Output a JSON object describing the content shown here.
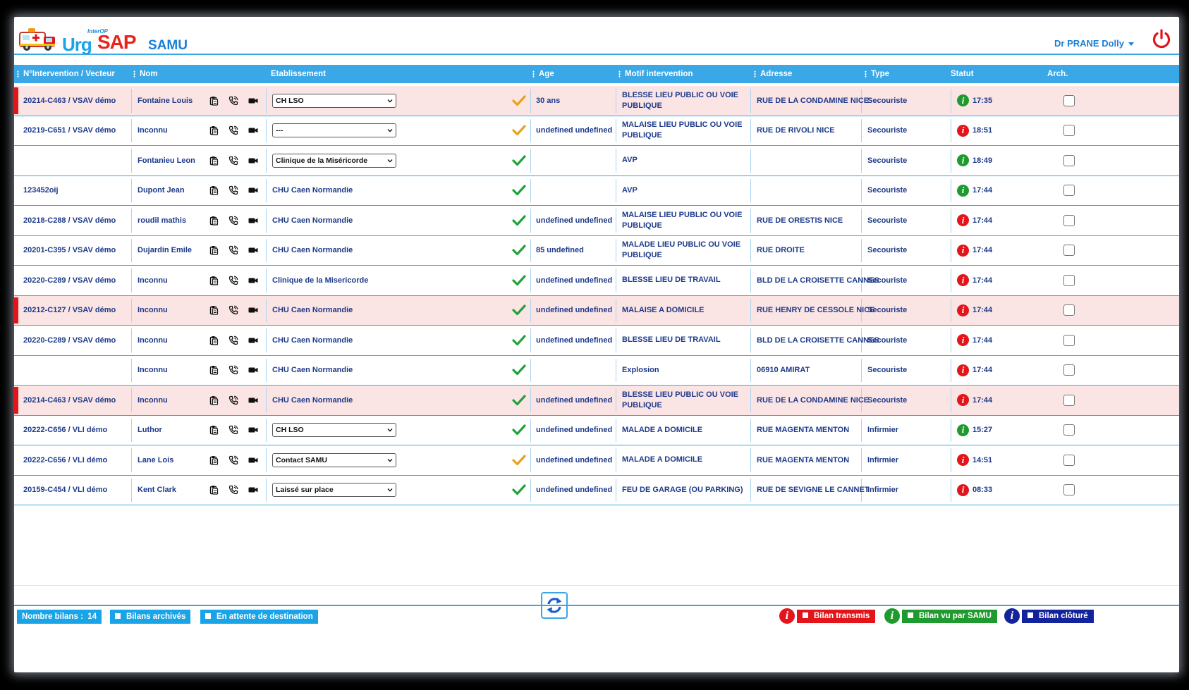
{
  "app": {
    "interop": "InterOP",
    "urg": "Urg",
    "sap": "SAP",
    "samu": "SAMU"
  },
  "user": {
    "name": "Dr PRANE Dolly"
  },
  "columns": [
    "N°Intervention / Vecteur",
    "Nom",
    "Etablissement",
    "Age",
    "Motif intervention",
    "Adresse",
    "Type",
    "Statut",
    "Arch."
  ],
  "colors": {
    "accent": "#3aa7e6",
    "alert_row": "#fbe4e4",
    "alert_bar": "#e3151a",
    "red": "#e3151a",
    "green": "#1f9a2e",
    "navy": "#13239b",
    "check_green": "#1fa33a",
    "check_orange": "#e6a21a"
  },
  "rows": [
    {
      "intervention": "20214-C463 / VSAV démo",
      "nom": "Fontaine Louis",
      "etab": "CH LSO",
      "etab_select": true,
      "check": "orange",
      "age": "30 ans",
      "motif": "BLESSE LIEU PUBLIC OU VOIE PUBLIQUE",
      "adresse": "RUE DE LA CONDAMINE NICE",
      "type": "Secouriste",
      "status": "green",
      "time": "17:35",
      "alert": true
    },
    {
      "intervention": "20219-C651 / VSAV démo",
      "nom": "Inconnu",
      "etab": "---",
      "etab_select": true,
      "check": "orange",
      "age": "undefined undefined",
      "motif": "MALAISE LIEU PUBLIC OU VOIE PUBLIQUE",
      "adresse": "RUE DE RIVOLI NICE",
      "type": "Secouriste",
      "status": "red",
      "time": "18:51",
      "alert": false
    },
    {
      "intervention": "",
      "nom": "Fontanieu Leon",
      "etab": "Clinique de la Miséricorde",
      "etab_select": true,
      "check": "green",
      "age": "",
      "motif": "AVP",
      "adresse": "",
      "type": "Secouriste",
      "status": "green",
      "time": "18:49",
      "alert": false
    },
    {
      "intervention": "123452oij",
      "nom": "Dupont Jean",
      "etab": "CHU Caen Normandie",
      "etab_select": false,
      "check": "green",
      "age": "",
      "motif": "AVP",
      "adresse": "",
      "type": "Secouriste",
      "status": "green",
      "time": "17:44",
      "alert": false
    },
    {
      "intervention": "20218-C288 / VSAV démo",
      "nom": "roudil mathis",
      "etab": "CHU Caen Normandie",
      "etab_select": false,
      "check": "green",
      "age": "undefined undefined",
      "motif": "MALAISE LIEU PUBLIC OU VOIE PUBLIQUE",
      "adresse": "RUE DE ORESTIS NICE",
      "type": "Secouriste",
      "status": "red",
      "time": "17:44",
      "alert": false
    },
    {
      "intervention": "20201-C395 / VSAV démo",
      "nom": "Dujardin Emile",
      "etab": "CHU Caen Normandie",
      "etab_select": false,
      "check": "green",
      "age": "85 undefined",
      "motif": "MALADE LIEU PUBLIC OU VOIE PUBLIQUE",
      "adresse": "RUE DROITE",
      "type": "Secouriste",
      "status": "red",
      "time": "17:44",
      "alert": false
    },
    {
      "intervention": "20220-C289 / VSAV démo",
      "nom": "Inconnu",
      "etab": "Clinique de la Misericorde",
      "etab_select": false,
      "check": "green",
      "age": "undefined undefined",
      "motif": "BLESSE LIEU DE TRAVAIL",
      "adresse": "BLD DE LA CROISETTE CANNES",
      "type": "Secouriste",
      "status": "red",
      "time": "17:44",
      "alert": false
    },
    {
      "intervention": "20212-C127 / VSAV démo",
      "nom": "Inconnu",
      "etab": "CHU Caen Normandie",
      "etab_select": false,
      "check": "green",
      "age": "undefined undefined",
      "motif": "MALAISE A DOMICILE",
      "adresse": "RUE HENRY DE CESSOLE NICE",
      "type": "Secouriste",
      "status": "red",
      "time": "17:44",
      "alert": true
    },
    {
      "intervention": "20220-C289 / VSAV démo",
      "nom": "Inconnu",
      "etab": "CHU Caen Normandie",
      "etab_select": false,
      "check": "green",
      "age": "undefined undefined",
      "motif": "BLESSE LIEU DE TRAVAIL",
      "adresse": "BLD DE LA CROISETTE CANNES",
      "type": "Secouriste",
      "status": "red",
      "time": "17:44",
      "alert": false
    },
    {
      "intervention": "",
      "nom": "Inconnu",
      "etab": "CHU Caen Normandie",
      "etab_select": false,
      "check": "green",
      "age": "",
      "motif": "Explosion",
      "adresse": "06910 AMIRAT",
      "type": "Secouriste",
      "status": "red",
      "time": "17:44",
      "alert": false
    },
    {
      "intervention": "20214-C463 / VSAV démo",
      "nom": "Inconnu",
      "etab": "CHU Caen Normandie",
      "etab_select": false,
      "check": "green",
      "age": "undefined undefined",
      "motif": "BLESSE LIEU PUBLIC OU VOIE PUBLIQUE",
      "adresse": "RUE DE LA CONDAMINE NICE",
      "type": "Secouriste",
      "status": "red",
      "time": "17:44",
      "alert": true
    },
    {
      "intervention": "20222-C656 / VLI démo",
      "nom": "Luthor",
      "etab": "CH LSO",
      "etab_select": true,
      "check": "green",
      "age": "undefined undefined",
      "motif": "MALADE A DOMICILE",
      "adresse": "RUE MAGENTA MENTON",
      "type": "Infirmier",
      "status": "green",
      "time": "15:27",
      "alert": false
    },
    {
      "intervention": "20222-C656 / VLI démo",
      "nom": "Lane Lois",
      "etab": "Contact SAMU",
      "etab_select": true,
      "check": "orange",
      "age": "undefined undefined",
      "motif": "MALADE A DOMICILE",
      "adresse": "RUE MAGENTA MENTON",
      "type": "Infirmier",
      "status": "red",
      "time": "14:51",
      "alert": false
    },
    {
      "intervention": "20159-C454 / VLI démo",
      "nom": "Kent Clark",
      "etab": "Laissé sur place",
      "etab_select": true,
      "check": "green",
      "age": "undefined undefined",
      "motif": "FEU DE GARAGE (OU PARKING)",
      "adresse": "RUE DE SEVIGNE LE CANNET",
      "type": "Infirmier",
      "status": "red",
      "time": "08:33",
      "alert": false
    }
  ],
  "footer": {
    "count_label": "Nombre bilans :",
    "count_value": "14",
    "archived_label": "Bilans archivés",
    "waiting_label": "En attente de destination",
    "legend_transmis": "Bilan transmis",
    "legend_vu": "Bilan vu par SAMU",
    "legend_cloture": "Bilan clôturé"
  },
  "icons": [
    "ambulance-logo-icon",
    "power-icon",
    "clipboard-icon",
    "phone-icon",
    "video-camera-icon",
    "checkmark-icon",
    "info-icon",
    "refresh-icon",
    "chevron-down-icon"
  ]
}
